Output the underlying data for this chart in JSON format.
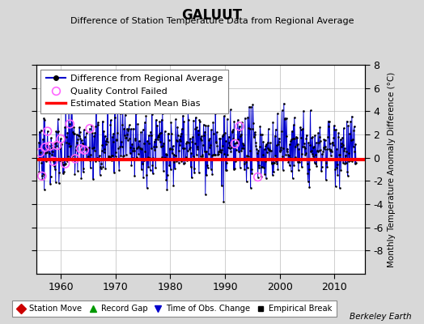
{
  "title": "GALUUT",
  "subtitle": "Difference of Station Temperature Data from Regional Average",
  "ylabel": "Monthly Temperature Anomaly Difference (°C)",
  "xlabel_years": [
    1960,
    1970,
    1980,
    1990,
    2000,
    2010
  ],
  "xlim": [
    1955.5,
    2015.5
  ],
  "ylim": [
    -10,
    8
  ],
  "yticks": [
    -8,
    -6,
    -4,
    -2,
    0,
    2,
    4,
    6,
    8
  ],
  "mean_bias": -0.15,
  "bias_color": "#ff0000",
  "line_color": "#0000cc",
  "line_fill_color": "#8888ff",
  "qc_color": "#ff66ff",
  "bg_color": "#d8d8d8",
  "plot_bg_color": "#ffffff",
  "grid_color": "#bbbbbb",
  "seed": 42,
  "n_points": 696,
  "start_decimal_year": 1956.0,
  "berkeley_earth_text": "Berkeley Earth",
  "legend1": [
    {
      "label": "Difference from Regional Average"
    },
    {
      "label": "Quality Control Failed"
    },
    {
      "label": "Estimated Station Mean Bias"
    }
  ],
  "legend2": [
    {
      "label": "Station Move",
      "color": "#cc0000",
      "marker": "D"
    },
    {
      "label": "Record Gap",
      "color": "#009900",
      "marker": "^"
    },
    {
      "label": "Time of Obs. Change",
      "color": "#0000cc",
      "marker": "v"
    },
    {
      "label": "Empirical Break",
      "color": "#000000",
      "marker": "s"
    }
  ],
  "line_color_legend": "#0000cc",
  "bias_linewidth": 3.0,
  "main_linewidth": 0.7
}
